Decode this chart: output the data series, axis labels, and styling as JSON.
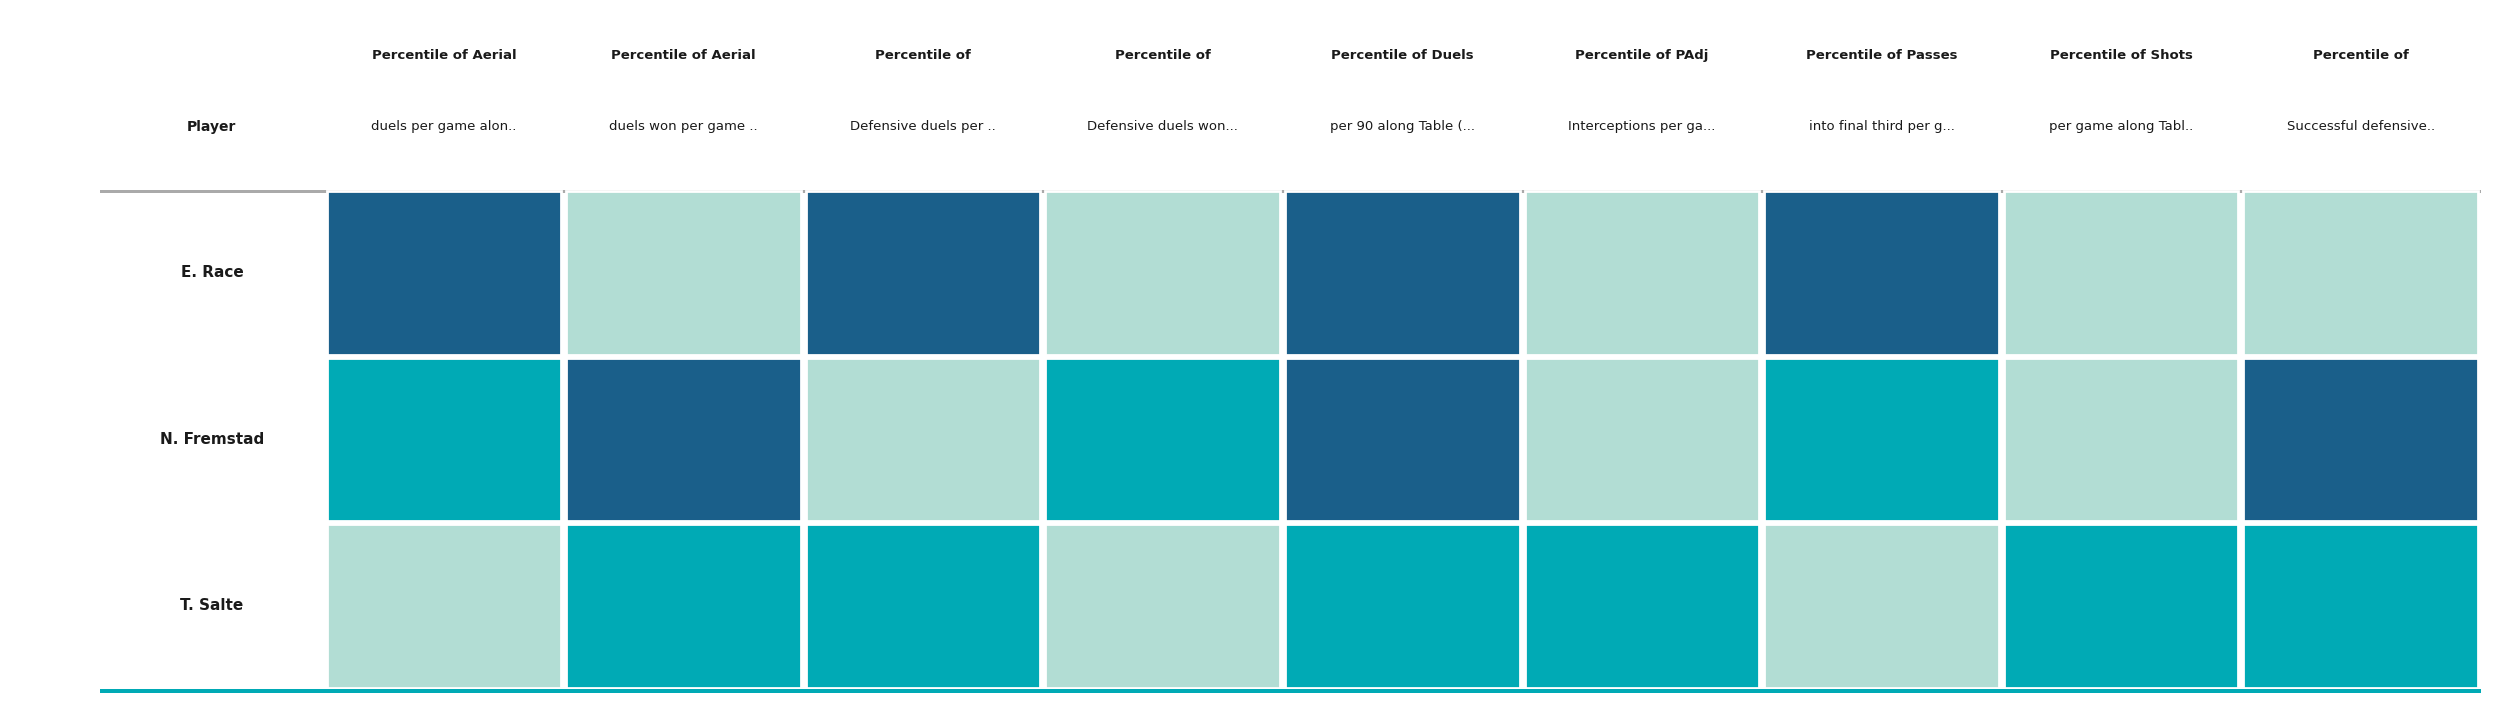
{
  "players": [
    "E. Race",
    "N. Fremstad",
    "T. Salte"
  ],
  "col_headers_top": [
    "Percentile of Aerial",
    "Percentile of Aerial",
    "Percentile of",
    "Percentile of",
    "Percentile of Duels",
    "Percentile of PAdj",
    "Percentile of Passes",
    "Percentile of Shots",
    "Percentile of"
  ],
  "col_headers_bot": [
    "duels per game alon..",
    "duels won per game ..",
    "Defensive duels per ..",
    "Defensive duels won...",
    "per 90 along Table (...",
    "Interceptions per ga...",
    "into final third per g...",
    "per game along Tabl..",
    "Successful defensive.."
  ],
  "cell_colors": [
    [
      "#1a5f8a",
      "#b2ddd4",
      "#1a5f8a",
      "#b2ddd4",
      "#1a5f8a",
      "#b2ddd4",
      "#1a5f8a",
      "#b2ddd4",
      "#b2ddd4"
    ],
    [
      "#00aab5",
      "#1a5f8a",
      "#b2ddd4",
      "#00aab5",
      "#1a5f8a",
      "#b2ddd4",
      "#00aab5",
      "#b2ddd4",
      "#1a5f8a"
    ],
    [
      "#b2ddd4",
      "#00aab5",
      "#00aab5",
      "#b2ddd4",
      "#00aab5",
      "#00aab5",
      "#b2ddd4",
      "#00aab5",
      "#00aab5"
    ]
  ],
  "background_color": "#ffffff",
  "col_label_row": "Player",
  "separator_color": "#aaaaaa",
  "bottom_line_color": "#00aab5"
}
